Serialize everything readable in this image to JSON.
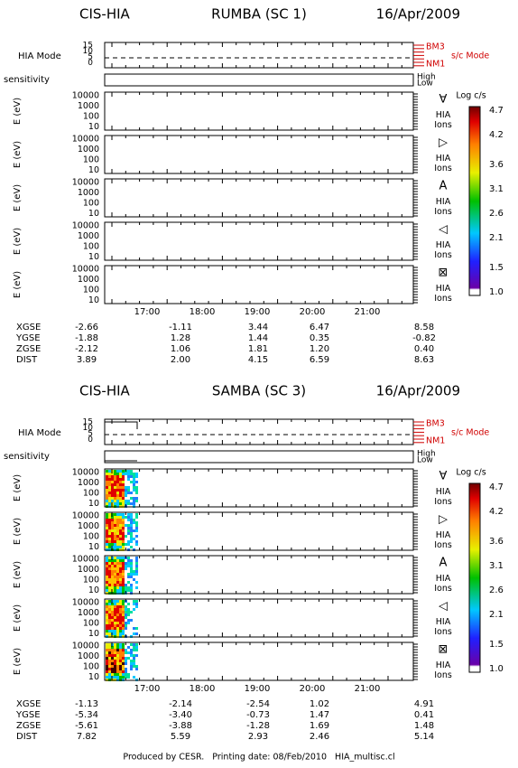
{
  "blocks": [
    {
      "instrument": "CIS-HIA",
      "spacecraft": "RUMBA (SC 1)",
      "date": "16/Apr/2009",
      "mode_label": "HIA Mode",
      "mode_ticks": [
        "15",
        "10",
        "5",
        "0"
      ],
      "modes": [
        "BM3",
        "NM1"
      ],
      "sc_mode": "s/c Mode",
      "sensitivity_label": "sensitivity",
      "sensitivity_levels": [
        "High",
        "Low"
      ],
      "energy_label": "E (eV)",
      "energy_ticks": [
        "10000",
        "1000",
        "100",
        "10"
      ],
      "panels": [
        {
          "icon": "∀",
          "label": "HIA Ions"
        },
        {
          "icon": "▷",
          "label": "HIA Ions"
        },
        {
          "icon": "A",
          "label": "HIA Ions"
        },
        {
          "icon": "◁",
          "label": "HIA Ions"
        },
        {
          "icon": "⊠",
          "label": "HIA Ions"
        }
      ],
      "colorbar": {
        "title": "Log c/s",
        "ticks": [
          "4.7",
          "4.2",
          "3.6",
          "3.1",
          "2.6",
          "2.1",
          "1.5",
          "1.0"
        ]
      },
      "times": [
        "17:00",
        "18:00",
        "19:00",
        "20:00",
        "21:00"
      ],
      "position": [
        {
          "name": "XGSE",
          "values": [
            "-2.66",
            "-1.11",
            "3.44",
            "6.47",
            "8.58"
          ]
        },
        {
          "name": "YGSE",
          "values": [
            "-1.88",
            "1.28",
            "1.44",
            "0.35",
            "-0.82"
          ]
        },
        {
          "name": "ZGSE",
          "values": [
            "-2.12",
            "1.06",
            "1.81",
            "1.20",
            "0.40"
          ]
        },
        {
          "name": "DIST",
          "values": [
            "3.89",
            "2.00",
            "4.15",
            "6.59",
            "8.63"
          ]
        }
      ]
    },
    {
      "instrument": "CIS-HIA",
      "spacecraft": "SAMBA (SC 3)",
      "date": "16/Apr/2009",
      "mode_label": "HIA Mode",
      "mode_ticks": [
        "15",
        "10",
        "5",
        "0"
      ],
      "modes": [
        "BM3",
        "NM1"
      ],
      "sc_mode": "s/c Mode",
      "sensitivity_label": "sensitivity",
      "sensitivity_levels": [
        "High",
        "Low"
      ],
      "energy_label": "E (eV)",
      "energy_ticks": [
        "10000",
        "1000",
        "100",
        "10"
      ],
      "panels": [
        {
          "icon": "∀",
          "label": "HIA Ions"
        },
        {
          "icon": "▷",
          "label": "HIA Ions"
        },
        {
          "icon": "A",
          "label": "HIA Ions"
        },
        {
          "icon": "◁",
          "label": "HIA Ions"
        },
        {
          "icon": "⊠",
          "label": "HIA Ions"
        }
      ],
      "colorbar": {
        "title": "Log c/s",
        "ticks": [
          "4.7",
          "4.2",
          "3.6",
          "3.1",
          "2.6",
          "2.1",
          "1.5",
          "1.0"
        ]
      },
      "times": [
        "17:00",
        "18:00",
        "19:00",
        "20:00",
        "21:00"
      ],
      "position": [
        {
          "name": "XGSE",
          "values": [
            "-1.13",
            "-2.14",
            "-2.54",
            "1.02",
            "4.91"
          ]
        },
        {
          "name": "YGSE",
          "values": [
            "-5.34",
            "-3.40",
            "-0.73",
            "1.47",
            "0.41"
          ]
        },
        {
          "name": "ZGSE",
          "values": [
            "-5.61",
            "-3.88",
            "-1.28",
            "1.69",
            "1.48"
          ]
        },
        {
          "name": "DIST",
          "values": [
            "7.82",
            "5.59",
            "2.93",
            "2.46",
            "5.14"
          ]
        }
      ]
    }
  ],
  "footer": "Produced by CESR.   Printing date: 08/Feb/2010   HIA_multisc.cl"
}
